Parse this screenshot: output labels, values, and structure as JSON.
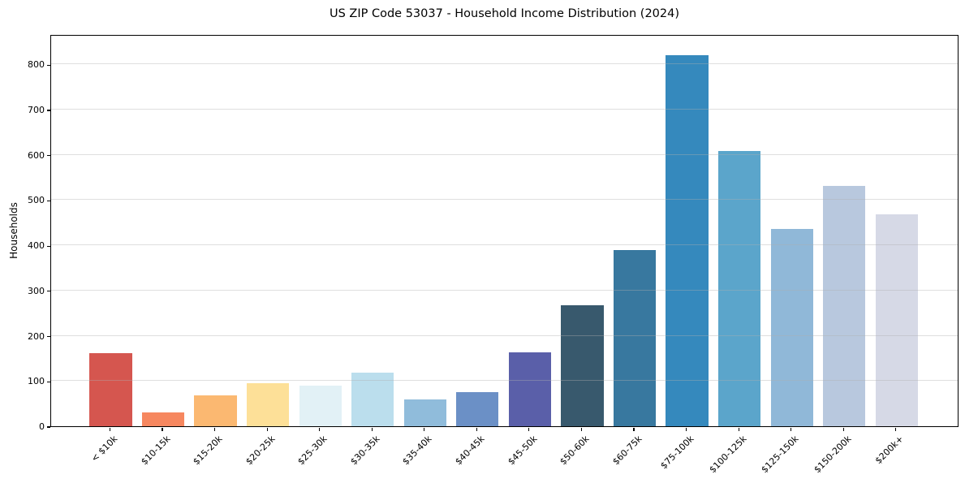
{
  "chart_data": {
    "type": "bar",
    "title": "US ZIP Code 53037 - Household Income Distribution (2024)",
    "xlabel": "",
    "ylabel": "Households",
    "categories": [
      "< $10k",
      "$10-15k",
      "$15-20k",
      "$20-25k",
      "$25-30k",
      "$30-35k",
      "$35-40k",
      "$40-45k",
      "$45-50k",
      "$50-60k",
      "$60-75k",
      "$75-100k",
      "$100-125k",
      "$125-150k",
      "$150-200k",
      "$200k+"
    ],
    "values": [
      162,
      30,
      68,
      96,
      89,
      119,
      60,
      75,
      163,
      268,
      390,
      820,
      608,
      437,
      532,
      468
    ],
    "bar_colors": [
      "#d5564f",
      "#f6875f",
      "#fbb871",
      "#fde098",
      "#e2f1f6",
      "#bbdeed",
      "#90bcdb",
      "#6b90c6",
      "#5a5fa9",
      "#38596d",
      "#38789f",
      "#3589bd",
      "#5ba5cb",
      "#90b8d8",
      "#b8c8de",
      "#d6d9e6"
    ],
    "yticks": [
      0,
      100,
      200,
      300,
      400,
      500,
      600,
      700,
      800
    ],
    "ylim": [
      0,
      867
    ],
    "grid": "horizontal-only",
    "legend_position": "none",
    "bar_width_fraction": 0.81,
    "xtick_label_rotation_deg": 45
  },
  "colors": {
    "background": "#ffffff",
    "grid": "#b0b0b0",
    "axis": "#000000",
    "text": "#000000"
  }
}
